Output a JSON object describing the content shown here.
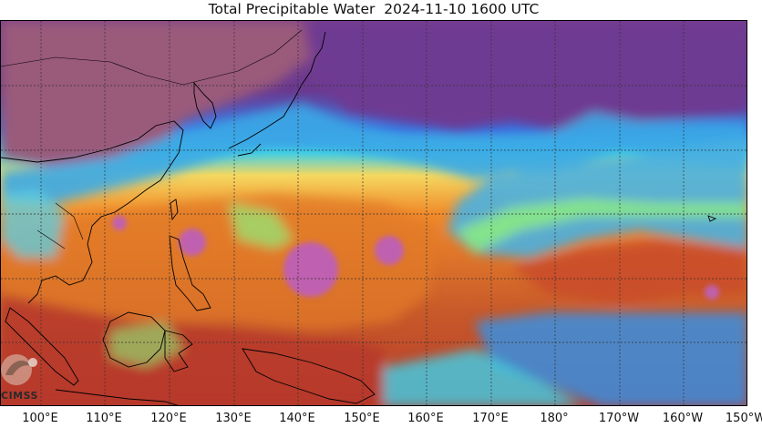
{
  "title": "Total Precipitable Water  2024-11-10 1600 UTC",
  "longitude_labels": [
    "100°E",
    "110°E",
    "120°E",
    "130°E",
    "140°E",
    "150°E",
    "160°E",
    "170°E",
    "180°",
    "170°W",
    "160°W",
    "150°W"
  ],
  "logo": {
    "text": "CIMSS",
    "icon": "cimss-logo-icon"
  },
  "colors": {
    "dry": "#7a3f8c",
    "very_dry": "#9a5a7a",
    "low": "#3a6fe0",
    "mid_low": "#3fd0e8",
    "mid": "#8ff07a",
    "mid_high": "#f5d860",
    "high": "#f08a2a",
    "very_high": "#b63a2a",
    "extreme": "#c060b0",
    "coast": "#000000",
    "grid": "#333333"
  }
}
